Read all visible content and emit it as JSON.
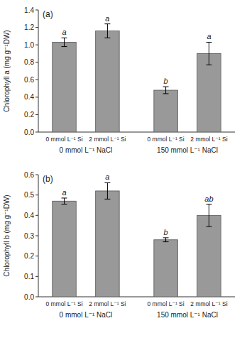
{
  "chart_data": [
    {
      "type": "bar",
      "title": "(a)",
      "y_label": "Chlorophyll a (mg g⁻¹DW)",
      "categories": [
        "0 mmol L⁻¹ Si",
        "2 mmol L⁻¹ Si",
        "0 mmol L⁻¹ Si",
        "2 mmol L⁻¹ Si"
      ],
      "groups": [
        "0 mmol L⁻¹ NaCl",
        "150 mmol L⁻¹ NaCl"
      ],
      "values": [
        1.03,
        1.16,
        0.48,
        0.9
      ],
      "errors": [
        0.05,
        0.08,
        0.04,
        0.13
      ],
      "annotations": [
        "a",
        "a",
        "b",
        "a"
      ],
      "color": "#999999",
      "ylim": [
        0,
        1.4
      ],
      "yticks": [
        {
          "value": 0.0,
          "label": "0.0"
        },
        0.2,
        0.4,
        0.6,
        0.8,
        {
          "value": 1.0,
          "label": "1.0"
        },
        1.2,
        1.4
      ]
    },
    {
      "type": "bar",
      "title": "(b)",
      "y_label": "Chlorophyll b (mg g⁻¹DW)",
      "categories": [
        "0 mmol L⁻¹ Si",
        "2 mmol L⁻¹ Si",
        "0 mmol L⁻¹ Si",
        "2 mmol L⁻¹ Si"
      ],
      "groups": [
        "0 mmol L⁻¹ NaCl",
        "150 mmol L⁻¹ NaCl"
      ],
      "values": [
        0.47,
        0.52,
        0.28,
        0.4
      ],
      "errors": [
        0.015,
        0.04,
        0.01,
        0.055
      ],
      "annotations": [
        "a",
        "a",
        "b",
        "ab"
      ],
      "color": "#999999",
      "ylim": [
        0,
        0.6
      ],
      "yticks": [
        {
          "value": 0.0,
          "label": "0.0"
        },
        0.1,
        0.2,
        0.3,
        0.4,
        0.5,
        0.6
      ]
    }
  ]
}
